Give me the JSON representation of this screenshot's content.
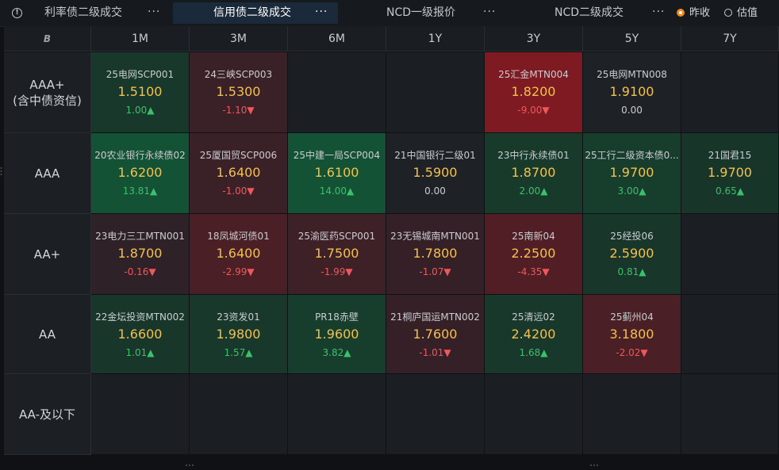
{
  "tabs": [
    {
      "label": "利率债二级成交",
      "more": "···",
      "active": false
    },
    {
      "label": "信用债二级成交",
      "more": "···",
      "active": true
    },
    {
      "label": "NCD一级报价",
      "more": "···",
      "active": false
    },
    {
      "label": "NCD二级成交",
      "more": "···",
      "active": false
    }
  ],
  "radio": [
    {
      "label": "昨收",
      "checked": true
    },
    {
      "label": "估值",
      "checked": false
    }
  ],
  "corner_label": "B",
  "columns": [
    "1M",
    "3M",
    "6M",
    "1Y",
    "3Y",
    "5Y",
    "7Y"
  ],
  "rows": [
    {
      "label": "AAA+\n(含中债资信)",
      "label_lines": [
        "AAA+",
        "(含中债资信)"
      ]
    },
    {
      "label": "AAA",
      "label_lines": [
        "AAA"
      ]
    },
    {
      "label": "AA+",
      "label_lines": [
        "AA+"
      ]
    },
    {
      "label": "AA",
      "label_lines": [
        "AA"
      ]
    },
    {
      "label": "AA-及以下",
      "label_lines": [
        "AA-及以下"
      ]
    }
  ],
  "cells": [
    [
      {
        "name": "25电网SCP001",
        "price": "1.5100",
        "change": "1.00▲",
        "dir": "up",
        "bg": "#17382a"
      },
      {
        "name": "24三峡SCP003",
        "price": "1.5300",
        "change": "-1.10▼",
        "dir": "down",
        "bg": "#3a2027"
      },
      null,
      null,
      {
        "name": "25汇金MTN004",
        "price": "1.8200",
        "change": "-9.00▼",
        "dir": "down",
        "bg": "#7d1a22"
      },
      {
        "name": "25电网MTN008",
        "price": "1.9100",
        "change": "0.00",
        "dir": "flat",
        "bg": "#1e2227"
      },
      null
    ],
    [
      {
        "name": "20农业银行永续债02",
        "price": "1.6200",
        "change": "13.81▲",
        "dir": "up",
        "bg": "#135234"
      },
      {
        "name": "25厦国贸SCP006",
        "price": "1.6400",
        "change": "-1.00▼",
        "dir": "down",
        "bg": "#3a2027"
      },
      {
        "name": "25中建一局SCP004",
        "price": "1.6100",
        "change": "14.00▲",
        "dir": "up",
        "bg": "#135234"
      },
      {
        "name": "21中国银行二级01",
        "price": "1.5900",
        "change": "0.00",
        "dir": "flat",
        "bg": "#1e2227"
      },
      {
        "name": "23中行永续债01",
        "price": "1.8700",
        "change": "2.00▲",
        "dir": "up",
        "bg": "#173a2b"
      },
      {
        "name": "25工行二级资本债0...",
        "price": "1.9700",
        "change": "3.00▲",
        "dir": "up",
        "bg": "#173d2d"
      },
      {
        "name": "21国君15",
        "price": "1.9700",
        "change": "0.65▲",
        "dir": "up",
        "bg": "#18352a"
      }
    ],
    [
      {
        "name": "23电力三工MTN001",
        "price": "1.8700",
        "change": "-0.16▼",
        "dir": "down",
        "bg": "#2e2127"
      },
      {
        "name": "18凤城河债01",
        "price": "1.6400",
        "change": "-2.99▼",
        "dir": "down",
        "bg": "#4a1f26"
      },
      {
        "name": "25渝医药SCP001",
        "price": "1.7500",
        "change": "-1.99▼",
        "dir": "down",
        "bg": "#3e2027"
      },
      {
        "name": "23无锡城南MTN001",
        "price": "1.7800",
        "change": "-1.07▼",
        "dir": "down",
        "bg": "#352027"
      },
      {
        "name": "25南新04",
        "price": "2.2500",
        "change": "-4.35▼",
        "dir": "down",
        "bg": "#521e25"
      },
      {
        "name": "25经投06",
        "price": "2.5900",
        "change": "0.81▲",
        "dir": "up",
        "bg": "#18362a"
      },
      null
    ],
    [
      {
        "name": "22金坛投资MTN002",
        "price": "1.6600",
        "change": "1.01▲",
        "dir": "up",
        "bg": "#18362a"
      },
      {
        "name": "23资发01",
        "price": "1.9800",
        "change": "1.57▲",
        "dir": "up",
        "bg": "#18382b"
      },
      {
        "name": "PR18赤壁",
        "price": "1.9600",
        "change": "3.82▲",
        "dir": "up",
        "bg": "#173e2d"
      },
      {
        "name": "21桐庐国运MTN002",
        "price": "1.7600",
        "change": "-1.01▼",
        "dir": "down",
        "bg": "#352027"
      },
      {
        "name": "25清远02",
        "price": "2.4200",
        "change": "1.68▲",
        "dir": "up",
        "bg": "#18382b"
      },
      {
        "name": "25蓟州04",
        "price": "3.1800",
        "change": "-2.02▼",
        "dir": "down",
        "bg": "#4a1f26"
      },
      null
    ],
    [
      null,
      null,
      null,
      null,
      null,
      null,
      null
    ]
  ],
  "colors": {
    "up": "#39c26a",
    "down": "#f0575b",
    "price": "#f2c14e",
    "accent": "#f08a1a",
    "active_tab": "#1b2a3a"
  }
}
